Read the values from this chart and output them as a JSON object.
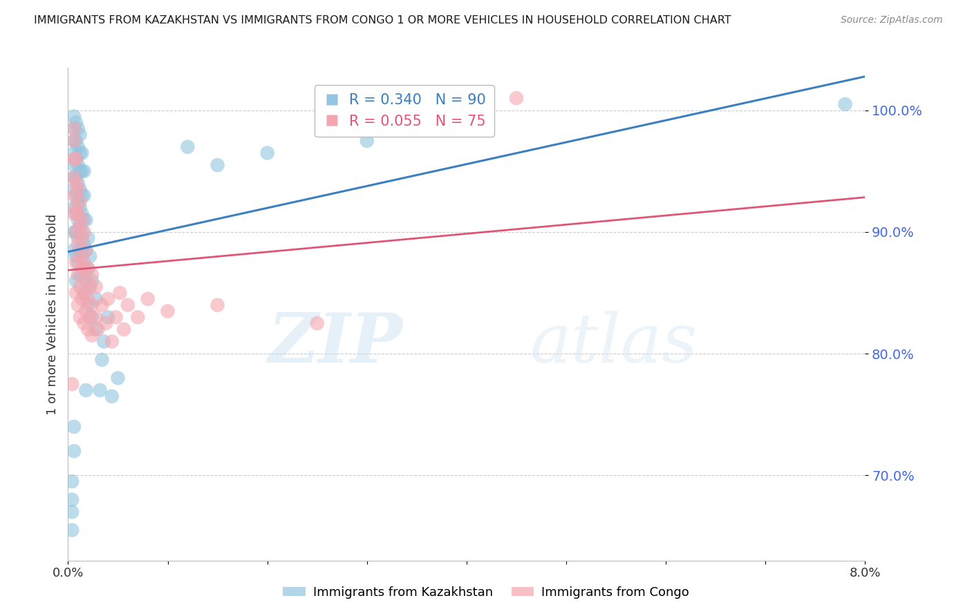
{
  "title": "IMMIGRANTS FROM KAZAKHSTAN VS IMMIGRANTS FROM CONGO 1 OR MORE VEHICLES IN HOUSEHOLD CORRELATION CHART",
  "source": "Source: ZipAtlas.com",
  "ylabel": "1 or more Vehicles in Household",
  "legend_kaz_label": "Immigrants from Kazakhstan",
  "legend_congo_label": "Immigrants from Congo",
  "kaz_R": 0.34,
  "kaz_N": 90,
  "congo_R": 0.055,
  "congo_N": 75,
  "kaz_color": "#92c5de",
  "congo_color": "#f4a6b0",
  "kaz_line_color": "#3a7fc1",
  "congo_line_color": "#e05575",
  "watermark_zip": "ZIP",
  "watermark_atlas": "atlas",
  "background_color": "#ffffff",
  "title_color": "#1a1a1a",
  "axis_label_color": "#333333",
  "ytick_color": "#4169e1",
  "xtick_color": "#333333",
  "grid_color": "#cccccc",
  "xmin": 0.0,
  "xmax": 8.0,
  "ymin": 63.0,
  "ymax": 103.5,
  "yticks": [
    70.0,
    80.0,
    90.0,
    100.0
  ],
  "kaz_scatter": [
    [
      0.04,
      68.0
    ],
    [
      0.04,
      69.5
    ],
    [
      0.06,
      88.5
    ],
    [
      0.06,
      90.0
    ],
    [
      0.06,
      92.0
    ],
    [
      0.06,
      93.5
    ],
    [
      0.06,
      94.5
    ],
    [
      0.06,
      95.5
    ],
    [
      0.06,
      96.5
    ],
    [
      0.06,
      97.5
    ],
    [
      0.06,
      98.5
    ],
    [
      0.06,
      99.5
    ],
    [
      0.08,
      86.0
    ],
    [
      0.08,
      88.0
    ],
    [
      0.08,
      90.0
    ],
    [
      0.08,
      91.5
    ],
    [
      0.08,
      93.0
    ],
    [
      0.08,
      94.5
    ],
    [
      0.08,
      96.0
    ],
    [
      0.08,
      97.5
    ],
    [
      0.08,
      99.0
    ],
    [
      0.1,
      87.5
    ],
    [
      0.1,
      89.5
    ],
    [
      0.1,
      91.0
    ],
    [
      0.1,
      92.5
    ],
    [
      0.1,
      94.0
    ],
    [
      0.1,
      95.5
    ],
    [
      0.1,
      97.0
    ],
    [
      0.1,
      98.5
    ],
    [
      0.12,
      86.5
    ],
    [
      0.12,
      88.5
    ],
    [
      0.12,
      90.5
    ],
    [
      0.12,
      92.0
    ],
    [
      0.12,
      93.5
    ],
    [
      0.12,
      95.0
    ],
    [
      0.12,
      96.5
    ],
    [
      0.12,
      98.0
    ],
    [
      0.14,
      88.0
    ],
    [
      0.14,
      90.0
    ],
    [
      0.14,
      91.5
    ],
    [
      0.14,
      93.0
    ],
    [
      0.14,
      95.0
    ],
    [
      0.14,
      96.5
    ],
    [
      0.16,
      85.0
    ],
    [
      0.16,
      87.0
    ],
    [
      0.16,
      89.0
    ],
    [
      0.16,
      91.0
    ],
    [
      0.16,
      93.0
    ],
    [
      0.16,
      95.0
    ],
    [
      0.18,
      86.0
    ],
    [
      0.18,
      88.5
    ],
    [
      0.18,
      91.0
    ],
    [
      0.18,
      77.0
    ],
    [
      0.2,
      84.0
    ],
    [
      0.2,
      87.0
    ],
    [
      0.2,
      89.5
    ],
    [
      0.22,
      85.5
    ],
    [
      0.22,
      88.0
    ],
    [
      0.24,
      83.0
    ],
    [
      0.24,
      86.0
    ],
    [
      0.28,
      84.5
    ],
    [
      0.28,
      82.0
    ],
    [
      0.32,
      77.0
    ],
    [
      0.34,
      79.5
    ],
    [
      0.36,
      81.0
    ],
    [
      0.4,
      83.0
    ],
    [
      0.44,
      76.5
    ],
    [
      0.5,
      78.0
    ],
    [
      0.04,
      65.5
    ],
    [
      0.04,
      67.0
    ],
    [
      0.06,
      72.0
    ],
    [
      0.06,
      74.0
    ],
    [
      1.2,
      97.0
    ],
    [
      1.5,
      95.5
    ],
    [
      2.0,
      96.5
    ],
    [
      3.0,
      97.5
    ],
    [
      7.8,
      100.5
    ]
  ],
  "congo_scatter": [
    [
      0.04,
      77.5
    ],
    [
      0.06,
      91.5
    ],
    [
      0.06,
      93.0
    ],
    [
      0.06,
      94.5
    ],
    [
      0.06,
      96.0
    ],
    [
      0.06,
      97.5
    ],
    [
      0.06,
      98.5
    ],
    [
      0.08,
      85.0
    ],
    [
      0.08,
      87.5
    ],
    [
      0.08,
      90.0
    ],
    [
      0.08,
      92.0
    ],
    [
      0.08,
      94.0
    ],
    [
      0.08,
      96.0
    ],
    [
      0.1,
      84.0
    ],
    [
      0.1,
      86.5
    ],
    [
      0.1,
      89.0
    ],
    [
      0.1,
      91.5
    ],
    [
      0.1,
      93.5
    ],
    [
      0.12,
      83.0
    ],
    [
      0.12,
      85.5
    ],
    [
      0.12,
      88.0
    ],
    [
      0.12,
      90.5
    ],
    [
      0.12,
      92.5
    ],
    [
      0.14,
      84.5
    ],
    [
      0.14,
      87.0
    ],
    [
      0.14,
      89.5
    ],
    [
      0.14,
      91.0
    ],
    [
      0.16,
      82.5
    ],
    [
      0.16,
      85.0
    ],
    [
      0.16,
      87.5
    ],
    [
      0.16,
      90.0
    ],
    [
      0.18,
      83.5
    ],
    [
      0.18,
      86.0
    ],
    [
      0.18,
      88.5
    ],
    [
      0.2,
      82.0
    ],
    [
      0.2,
      84.5
    ],
    [
      0.2,
      87.0
    ],
    [
      0.22,
      83.0
    ],
    [
      0.22,
      85.5
    ],
    [
      0.24,
      81.5
    ],
    [
      0.24,
      84.0
    ],
    [
      0.24,
      86.5
    ],
    [
      0.28,
      83.0
    ],
    [
      0.28,
      85.5
    ],
    [
      0.3,
      82.0
    ],
    [
      0.34,
      84.0
    ],
    [
      0.38,
      82.5
    ],
    [
      0.4,
      84.5
    ],
    [
      0.44,
      81.0
    ],
    [
      0.48,
      83.0
    ],
    [
      0.52,
      85.0
    ],
    [
      0.56,
      82.0
    ],
    [
      0.6,
      84.0
    ],
    [
      0.7,
      83.0
    ],
    [
      0.8,
      84.5
    ],
    [
      1.0,
      83.5
    ],
    [
      1.5,
      84.0
    ],
    [
      2.5,
      82.5
    ],
    [
      4.5,
      101.0
    ]
  ]
}
